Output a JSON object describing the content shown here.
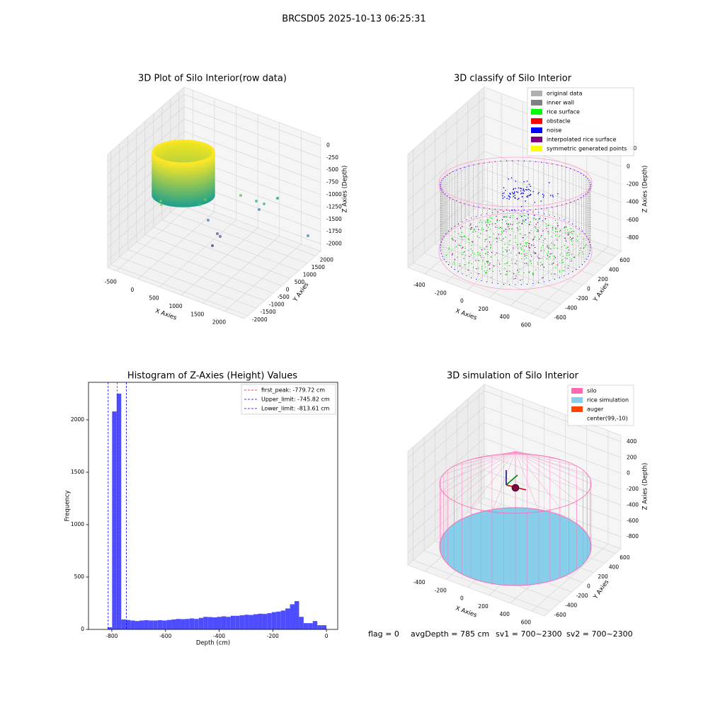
{
  "suptitle": "BRCSD05 2025-10-13 06:25:31",
  "footer": [
    "flag = 0",
    "avgDepth = 785 cm",
    "sv1 = 700~2300",
    "sv2 = 700~2300"
  ],
  "chart_data": [
    {
      "type": "scatter3d",
      "title": "3D Plot of Silo Interior(row data)",
      "xlabel": "X Axies",
      "ylabel": "Y Axies",
      "zlabel": "Z Axies (Depth)",
      "xlim": [
        -700,
        2450
      ],
      "xticks": [
        -500,
        0,
        500,
        1000,
        1500,
        2000
      ],
      "ylim": [
        -2200,
        2300
      ],
      "yticks": [
        -2000,
        -1500,
        -1000,
        -500,
        0,
        500,
        1000,
        1500,
        2000
      ],
      "zlim": [
        -2150,
        150
      ],
      "zticks": [
        -2000,
        -1750,
        -1500,
        -1250,
        -1000,
        -750,
        -500,
        -250,
        0
      ],
      "grid": true
    },
    {
      "type": "scatter3d",
      "title": "3D classify of Silo Interior",
      "xlabel": "X Axies",
      "ylabel": "Y Axies",
      "zlabel": "Z Axies (Depth)",
      "xlim": [
        -560,
        720
      ],
      "xticks": [
        -400,
        -200,
        0,
        200,
        400,
        600
      ],
      "ylim": [
        -700,
        700
      ],
      "yticks": [
        -600,
        -400,
        -200,
        0,
        200,
        400,
        600
      ],
      "zlim": [
        -950,
        320
      ],
      "zticks": [
        -800,
        -600,
        -400,
        -200,
        0,
        200
      ],
      "grid": true,
      "legend": [
        {
          "name": "original data",
          "color": "#b0b0b0"
        },
        {
          "name": "inner wall",
          "color": "#808080"
        },
        {
          "name": "rice surface",
          "color": "#00ff00"
        },
        {
          "name": "obstacle",
          "color": "#ff0000"
        },
        {
          "name": "noise",
          "color": "#0000ff"
        },
        {
          "name": "interpolated rice surface",
          "color": "#800080"
        },
        {
          "name": "symmetric generated points",
          "color": "#ffff00"
        }
      ]
    },
    {
      "type": "histogram",
      "title": "Histogram of Z-Axies (Height) Values",
      "xlabel": "Depth (cm)",
      "ylabel": "Frequency",
      "color": "#4d4dff",
      "bins": [
        -816,
        -799,
        -782,
        -765,
        -748,
        -731,
        -714,
        -697,
        -680,
        -663,
        -646,
        -629,
        -612,
        -595,
        -578,
        -561,
        -544,
        -527,
        -510,
        -493,
        -476,
        -459,
        -442,
        -425,
        -408,
        -391,
        -374,
        -357,
        -340,
        -323,
        -306,
        -289,
        -272,
        -255,
        -238,
        -221,
        -204,
        -187,
        -170,
        -153,
        -136,
        -119,
        -102,
        -85,
        -68,
        -51,
        -34,
        -17,
        0
      ],
      "values": [
        20,
        2080,
        2250,
        95,
        90,
        85,
        80,
        85,
        88,
        85,
        85,
        88,
        85,
        90,
        95,
        100,
        98,
        100,
        105,
        100,
        110,
        120,
        118,
        115,
        120,
        125,
        120,
        130,
        130,
        135,
        140,
        138,
        145,
        150,
        148,
        155,
        165,
        170,
        180,
        200,
        240,
        270,
        120,
        60,
        60,
        80,
        40,
        40
      ],
      "xlim": [
        -887,
        42
      ],
      "xticks": [
        -800,
        -600,
        -400,
        -200,
        0
      ],
      "ylim": [
        0,
        2358
      ],
      "yticks": [
        0,
        500,
        1000,
        1500,
        2000
      ],
      "vlines": [
        {
          "name": "first_peak: -779.72 cm",
          "value": -779.72,
          "color": "#ff0000"
        },
        {
          "name": "Upper_limit: -745.82 cm",
          "value": -745.82,
          "color": "#0000ff"
        },
        {
          "name": "Lower_limit: -813.61 cm",
          "value": -813.61,
          "color": "#0000ff"
        }
      ],
      "legend_position": "upper right"
    },
    {
      "type": "scatter3d",
      "title": "3D simulation of Silo Interior",
      "xlabel": "X Axies",
      "ylabel": "Y Axies",
      "zlabel": "Z Axies (Depth)",
      "xlim": [
        -560,
        720
      ],
      "xticks": [
        -400,
        -200,
        0,
        200,
        400,
        600
      ],
      "ylim": [
        -700,
        700
      ],
      "yticks": [
        -600,
        -400,
        -200,
        0,
        200,
        400,
        600
      ],
      "zlim": [
        -950,
        480
      ],
      "zticks": [
        -800,
        -600,
        -400,
        -200,
        0,
        200,
        400
      ],
      "grid": true,
      "legend": [
        {
          "name": "silo",
          "color": "#ff69b4"
        },
        {
          "name": "rice simulation",
          "color": "#87ceeb"
        },
        {
          "name": "auger",
          "color": "#ff4500"
        },
        {
          "name": "center(99,-10)",
          "color": "#ffffff"
        }
      ]
    }
  ]
}
